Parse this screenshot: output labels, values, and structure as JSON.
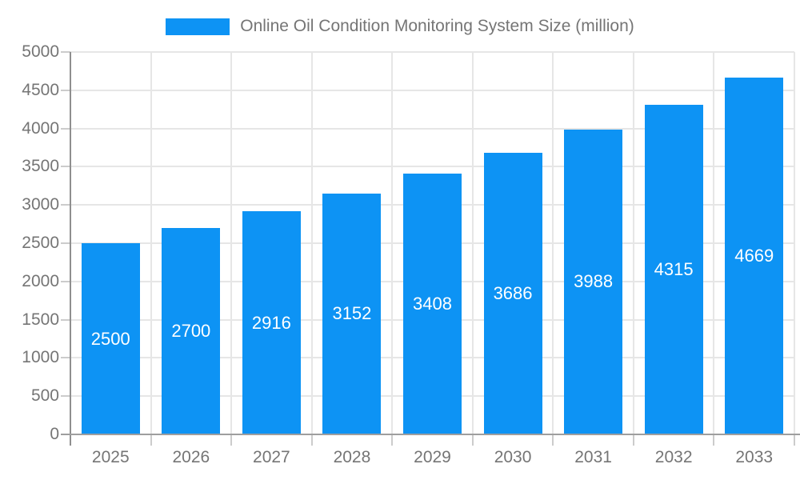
{
  "chart_data": {
    "type": "bar",
    "title": "Online Oil Condition Monitoring System Size (million)",
    "categories": [
      "2025",
      "2026",
      "2027",
      "2028",
      "2029",
      "2030",
      "2031",
      "2032",
      "2033"
    ],
    "values": [
      2500,
      2700,
      2916,
      3152,
      3408,
      3686,
      3988,
      4315,
      4669
    ],
    "value_labels": [
      "2500",
      "2700",
      "2916",
      "3152",
      "3408",
      "3686",
      "3988",
      "4315",
      "4669"
    ],
    "xlabel": "",
    "ylabel": "",
    "ylim": [
      0,
      5000
    ],
    "yticks": [
      0,
      500,
      1000,
      1500,
      2000,
      2500,
      3000,
      3500,
      4000,
      4500,
      5000
    ],
    "ytick_labels": [
      "0",
      "500",
      "1000",
      "1500",
      "2000",
      "2500",
      "3000",
      "3500",
      "4000",
      "4500",
      "5000"
    ],
    "grid": true,
    "legend_position": "top-center",
    "bar_color": "#0d93f4",
    "value_label_color": "#ffffff",
    "axis_text_color": "#757575",
    "grid_color": "#e6e6e6",
    "axis_line_color": "#8f8f8f",
    "background_color": "#ffffff"
  }
}
